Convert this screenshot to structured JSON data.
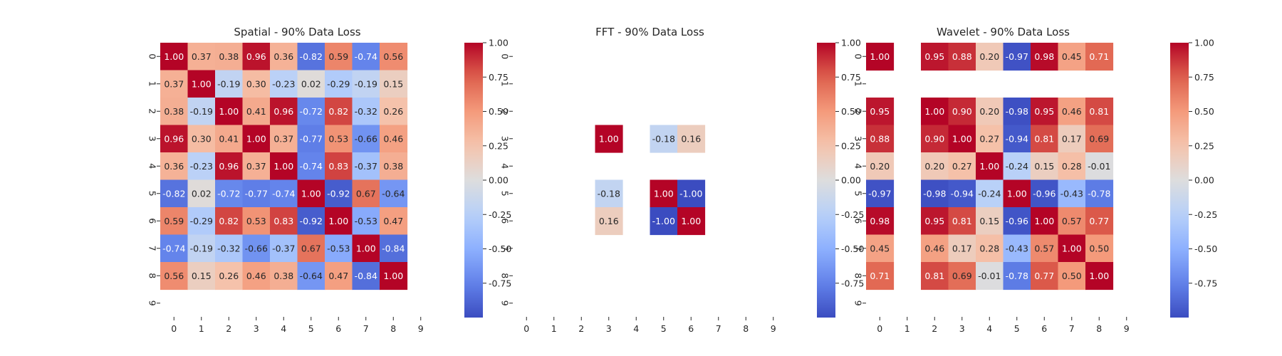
{
  "chart_data": [
    {
      "type": "heatmap",
      "title": "Spatial - 90% Data Loss",
      "x_ticks": [
        "0",
        "1",
        "2",
        "3",
        "4",
        "5",
        "6",
        "7",
        "8",
        "9"
      ],
      "y_ticks": [
        "0",
        "1",
        "2",
        "3",
        "4",
        "5",
        "6",
        "7",
        "8",
        "9"
      ],
      "colormap": "coolwarm",
      "colorbar": {
        "range": [
          -1.0,
          1.0
        ],
        "ticks": [
          "1.00",
          "0.75",
          "0.50",
          "0.25",
          "0.00",
          "-0.25",
          "-0.50",
          "-0.75"
        ]
      },
      "values": [
        [
          1.0,
          0.37,
          0.38,
          0.96,
          0.36,
          -0.82,
          0.59,
          -0.74,
          0.56,
          null
        ],
        [
          0.37,
          1.0,
          -0.19,
          0.3,
          -0.23,
          0.02,
          -0.29,
          -0.19,
          0.15,
          null
        ],
        [
          0.38,
          -0.19,
          1.0,
          0.41,
          0.96,
          -0.72,
          0.82,
          -0.32,
          0.26,
          null
        ],
        [
          0.96,
          0.3,
          0.41,
          1.0,
          0.37,
          -0.77,
          0.53,
          -0.66,
          0.46,
          null
        ],
        [
          0.36,
          -0.23,
          0.96,
          0.37,
          1.0,
          -0.74,
          0.83,
          -0.37,
          0.38,
          null
        ],
        [
          -0.82,
          0.02,
          -0.72,
          -0.77,
          -0.74,
          1.0,
          -0.92,
          0.67,
          -0.64,
          null
        ],
        [
          0.59,
          -0.29,
          0.82,
          0.53,
          0.83,
          -0.92,
          1.0,
          -0.53,
          0.47,
          null
        ],
        [
          -0.74,
          -0.19,
          -0.32,
          -0.66,
          -0.37,
          0.67,
          -0.53,
          1.0,
          -0.84,
          null
        ],
        [
          0.56,
          0.15,
          0.26,
          0.46,
          0.38,
          -0.64,
          0.47,
          -0.84,
          1.0,
          null
        ],
        [
          null,
          null,
          null,
          null,
          null,
          null,
          null,
          null,
          null,
          null
        ]
      ]
    },
    {
      "type": "heatmap",
      "title": "FFT - 90% Data Loss",
      "x_ticks": [
        "0",
        "1",
        "2",
        "3",
        "4",
        "5",
        "6",
        "7",
        "8",
        "9"
      ],
      "y_ticks": [
        "0",
        "1",
        "2",
        "3",
        "4",
        "5",
        "6",
        "7",
        "8",
        "9"
      ],
      "colormap": "coolwarm",
      "colorbar": {
        "range": [
          -1.0,
          1.0
        ],
        "ticks": [
          "1.00",
          "0.75",
          "0.50",
          "0.25",
          "0.00",
          "-0.25",
          "-0.50",
          "-0.75"
        ]
      },
      "values": [
        [
          null,
          null,
          null,
          null,
          null,
          null,
          null,
          null,
          null,
          null
        ],
        [
          null,
          null,
          null,
          null,
          null,
          null,
          null,
          null,
          null,
          null
        ],
        [
          null,
          null,
          null,
          null,
          null,
          null,
          null,
          null,
          null,
          null
        ],
        [
          null,
          null,
          null,
          1.0,
          null,
          -0.18,
          0.16,
          null,
          null,
          null
        ],
        [
          null,
          null,
          null,
          null,
          null,
          null,
          null,
          null,
          null,
          null
        ],
        [
          null,
          null,
          null,
          -0.18,
          null,
          1.0,
          -1.0,
          null,
          null,
          null
        ],
        [
          null,
          null,
          null,
          0.16,
          null,
          -1.0,
          1.0,
          null,
          null,
          null
        ],
        [
          null,
          null,
          null,
          null,
          null,
          null,
          null,
          null,
          null,
          null
        ],
        [
          null,
          null,
          null,
          null,
          null,
          null,
          null,
          null,
          null,
          null
        ],
        [
          null,
          null,
          null,
          null,
          null,
          null,
          null,
          null,
          null,
          null
        ]
      ]
    },
    {
      "type": "heatmap",
      "title": "Wavelet - 90% Data Loss",
      "x_ticks": [
        "0",
        "1",
        "2",
        "3",
        "4",
        "5",
        "6",
        "7",
        "8",
        "9"
      ],
      "y_ticks": [
        "0",
        "1",
        "2",
        "3",
        "4",
        "5",
        "6",
        "7",
        "8",
        "9"
      ],
      "colormap": "coolwarm",
      "colorbar": {
        "range": [
          -1.0,
          1.0
        ],
        "ticks": [
          "1.00",
          "0.75",
          "0.50",
          "0.25",
          "0.00",
          "-0.25",
          "-0.50",
          "-0.75"
        ]
      },
      "values": [
        [
          1.0,
          null,
          0.95,
          0.88,
          0.2,
          -0.97,
          0.98,
          0.45,
          0.71,
          null
        ],
        [
          null,
          null,
          null,
          null,
          null,
          null,
          null,
          null,
          null,
          null
        ],
        [
          0.95,
          null,
          1.0,
          0.9,
          0.2,
          -0.98,
          0.95,
          0.46,
          0.81,
          null
        ],
        [
          0.88,
          null,
          0.9,
          1.0,
          0.27,
          -0.94,
          0.81,
          0.17,
          0.69,
          null
        ],
        [
          0.2,
          null,
          0.2,
          0.27,
          1.0,
          -0.24,
          0.15,
          0.28,
          -0.01,
          null
        ],
        [
          -0.97,
          null,
          -0.98,
          -0.94,
          -0.24,
          1.0,
          -0.96,
          -0.43,
          -0.78,
          null
        ],
        [
          0.98,
          null,
          0.95,
          0.81,
          0.15,
          -0.96,
          1.0,
          0.57,
          0.77,
          null
        ],
        [
          0.45,
          null,
          0.46,
          0.17,
          0.28,
          -0.43,
          0.57,
          1.0,
          0.5,
          null
        ],
        [
          0.71,
          null,
          0.81,
          0.69,
          -0.01,
          -0.78,
          0.77,
          0.5,
          1.0,
          null
        ],
        [
          null,
          null,
          null,
          null,
          null,
          null,
          null,
          null,
          null,
          null
        ]
      ]
    }
  ]
}
